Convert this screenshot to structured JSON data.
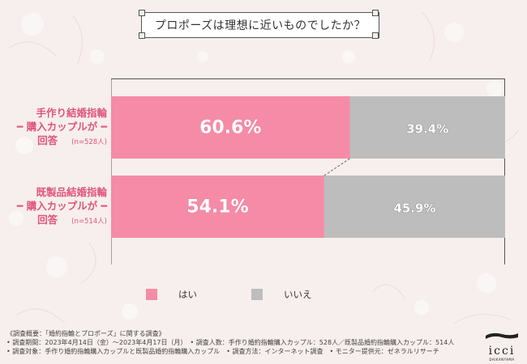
{
  "title": "プロポーズは理想に近いものでしたか？",
  "chart_data": {
    "type": "bar",
    "orientation": "horizontal",
    "stacked": true,
    "categories": [
      {
        "lines": [
          "手作り結婚指輪",
          "購入カップルが",
          "回答"
        ],
        "n": "(n=528人)"
      },
      {
        "lines": [
          "既製品結婚指輪",
          "購入カップルが",
          "回答"
        ],
        "n": "(n=514人)"
      }
    ],
    "series": [
      {
        "name": "はい",
        "color": "#f58ba7",
        "values": [
          60.6,
          54.1
        ]
      },
      {
        "name": "いいえ",
        "color": "#bdbdbd",
        "values": [
          39.4,
          45.9
        ]
      }
    ],
    "unit": "%",
    "xlim": [
      0,
      100
    ]
  },
  "legend": [
    {
      "label": "はい",
      "color": "#f58ba7"
    },
    {
      "label": "いいえ",
      "color": "#bdbdbd"
    }
  ],
  "notes": [
    "《調査概要：「婚約指輪とプロポーズ」に関する調査》",
    "• 調査期間：2023年4月14日（金）～2023年4月17日（月）　• 調査人数：手作り婚約指輪購入カップル：528人／既製品婚約指輪購入カップル：514人",
    "• 調査対象：手作り婚約指輪購入カップルと既製品婚約指輪購入カップル　• 調査方法：インターネット調査　• モニター提供元：ゼネラルリサーチ"
  ],
  "logo": {
    "word": "icci",
    "sub": "DAIKANYAMA"
  }
}
